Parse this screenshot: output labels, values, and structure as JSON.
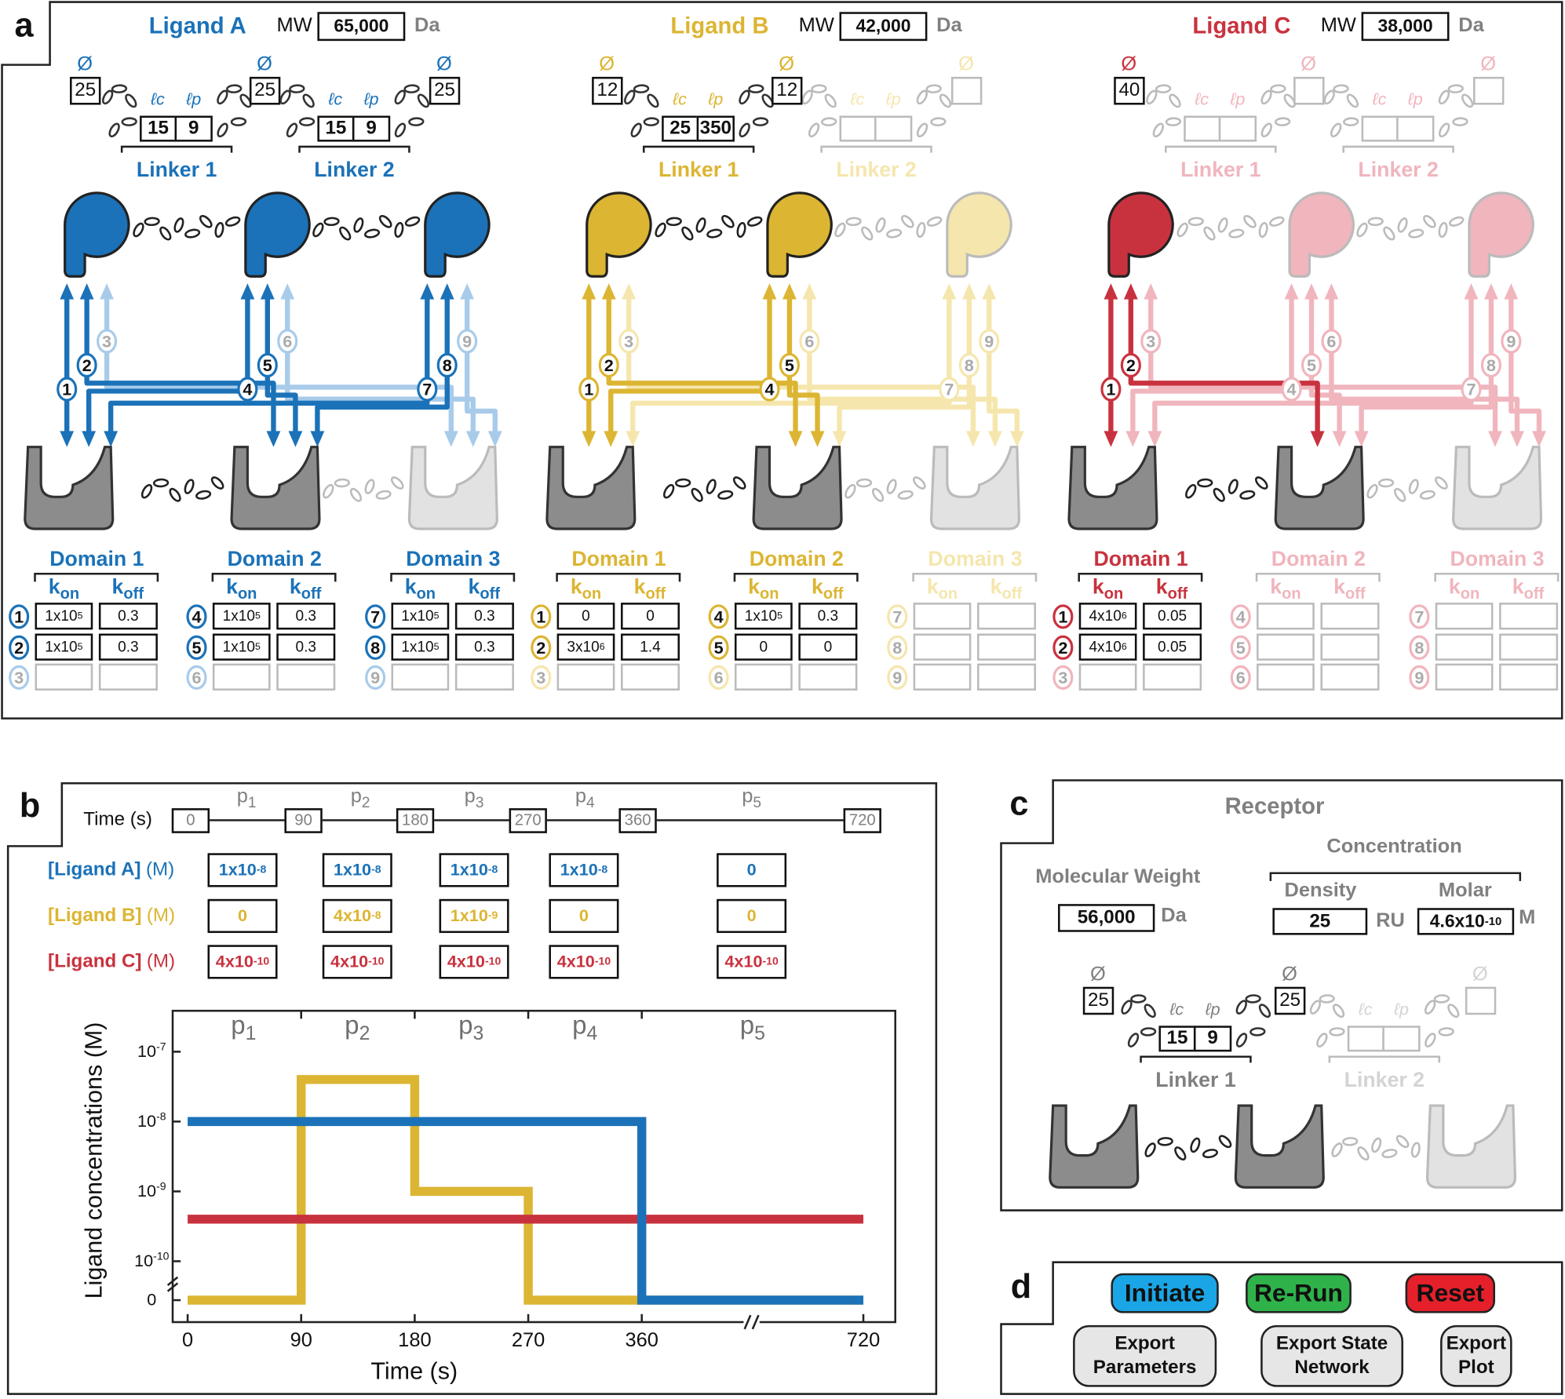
{
  "panel_labels": {
    "a": "a",
    "b": "b",
    "c": "c",
    "d": "d"
  },
  "symbols": {
    "diameter": "Ø",
    "lc": "ℓc",
    "lp": "ℓp",
    "k": "k",
    "on": "on",
    "off": "off"
  },
  "colors": {
    "ligand_a": "#1b72b8",
    "ligand_a_faded": "#a8cbea",
    "ligand_b": "#dcb532",
    "ligand_b_faded": "#f5e6ad",
    "ligand_c": "#c8323e",
    "ligand_c_faded": "#f0b5bd",
    "receptor": "#8c8c8c",
    "receptor_faded": "#e2e2e2",
    "text_grey": "#808080"
  },
  "ligands": [
    {
      "name": "Ligand A",
      "mw_label": "MW",
      "mw": "65,000",
      "mw_unit": "Da",
      "color": "#1b72b8",
      "faded": "#a8cbea",
      "modules_active": [
        true,
        true,
        true
      ],
      "diameters": [
        "25",
        "25",
        "25"
      ],
      "linkers": [
        {
          "label": "Linker 1",
          "lc": "15",
          "lp": "9",
          "active": true
        },
        {
          "label": "Linker 2",
          "lc": "15",
          "lp": "9",
          "active": true
        }
      ],
      "domains": [
        {
          "title": "Domain 1",
          "active": true,
          "rows": [
            {
              "num": "1",
              "kon": "1x10",
              "kon_exp": "5",
              "koff": "0.3"
            },
            {
              "num": "2",
              "kon": "1x10",
              "kon_exp": "5",
              "koff": "0.3"
            },
            {
              "num": "3",
              "kon": "",
              "kon_exp": "",
              "koff": ""
            }
          ]
        },
        {
          "title": "Domain 2",
          "active": true,
          "rows": [
            {
              "num": "4",
              "kon": "1x10",
              "kon_exp": "5",
              "koff": "0.3"
            },
            {
              "num": "5",
              "kon": "1x10",
              "kon_exp": "5",
              "koff": "0.3"
            },
            {
              "num": "6",
              "kon": "",
              "kon_exp": "",
              "koff": ""
            }
          ]
        },
        {
          "title": "Domain 3",
          "active": true,
          "rows": [
            {
              "num": "7",
              "kon": "1x10",
              "kon_exp": "5",
              "koff": "0.3"
            },
            {
              "num": "8",
              "kon": "1x10",
              "kon_exp": "5",
              "koff": "0.3"
            },
            {
              "num": "9",
              "kon": "",
              "kon_exp": "",
              "koff": ""
            }
          ]
        }
      ]
    },
    {
      "name": "Ligand B",
      "mw_label": "MW",
      "mw": "42,000",
      "mw_unit": "Da",
      "color": "#dcb532",
      "faded": "#f5e6ad",
      "modules_active": [
        true,
        true,
        false
      ],
      "diameters": [
        "12",
        "12",
        ""
      ],
      "linkers": [
        {
          "label": "Linker 1",
          "lc": "25",
          "lp": "350",
          "active": true
        },
        {
          "label": "Linker 2",
          "lc": "",
          "lp": "",
          "active": false
        }
      ],
      "domains": [
        {
          "title": "Domain 1",
          "active": true,
          "rows": [
            {
              "num": "1",
              "kon": "0",
              "kon_exp": "",
              "koff": "0"
            },
            {
              "num": "2",
              "kon": "3x10",
              "kon_exp": "6",
              "koff": "1.4"
            },
            {
              "num": "3",
              "kon": "",
              "kon_exp": "",
              "koff": ""
            }
          ]
        },
        {
          "title": "Domain 2",
          "active": true,
          "rows": [
            {
              "num": "4",
              "kon": "1x10",
              "kon_exp": "5",
              "koff": "0.3"
            },
            {
              "num": "5",
              "kon": "0",
              "kon_exp": "",
              "koff": "0"
            },
            {
              "num": "6",
              "kon": "",
              "kon_exp": "",
              "koff": ""
            }
          ]
        },
        {
          "title": "Domain 3",
          "active": false,
          "rows": [
            {
              "num": "7",
              "kon": "",
              "kon_exp": "",
              "koff": ""
            },
            {
              "num": "8",
              "kon": "",
              "kon_exp": "",
              "koff": ""
            },
            {
              "num": "9",
              "kon": "",
              "kon_exp": "",
              "koff": ""
            }
          ]
        }
      ]
    },
    {
      "name": "Ligand C",
      "mw_label": "MW",
      "mw": "38,000",
      "mw_unit": "Da",
      "color": "#c8323e",
      "faded": "#f0b5bd",
      "modules_active": [
        true,
        false,
        false
      ],
      "diameters": [
        "40",
        "",
        ""
      ],
      "linkers": [
        {
          "label": "Linker 1",
          "lc": "",
          "lp": "",
          "active": false
        },
        {
          "label": "Linker 2",
          "lc": "",
          "lp": "",
          "active": false
        }
      ],
      "domains": [
        {
          "title": "Domain 1",
          "active": true,
          "rows": [
            {
              "num": "1",
              "kon": "4x10",
              "kon_exp": "6",
              "koff": "0.05"
            },
            {
              "num": "2",
              "kon": "4x10",
              "kon_exp": "6",
              "koff": "0.05"
            },
            {
              "num": "3",
              "kon": "",
              "kon_exp": "",
              "koff": ""
            }
          ]
        },
        {
          "title": "Domain 2",
          "active": false,
          "rows": [
            {
              "num": "4",
              "kon": "",
              "kon_exp": "",
              "koff": ""
            },
            {
              "num": "5",
              "kon": "",
              "kon_exp": "",
              "koff": ""
            },
            {
              "num": "6",
              "kon": "",
              "kon_exp": "",
              "koff": ""
            }
          ]
        },
        {
          "title": "Domain 3",
          "active": false,
          "rows": [
            {
              "num": "7",
              "kon": "",
              "kon_exp": "",
              "koff": ""
            },
            {
              "num": "8",
              "kon": "",
              "kon_exp": "",
              "koff": ""
            },
            {
              "num": "9",
              "kon": "",
              "kon_exp": "",
              "koff": ""
            }
          ]
        }
      ]
    }
  ],
  "schedule": {
    "time_label": "Time (s)",
    "times": [
      "0",
      "90",
      "180",
      "270",
      "360",
      "720"
    ],
    "periods": [
      {
        "p": "p",
        "i": "1"
      },
      {
        "p": "p",
        "i": "2"
      },
      {
        "p": "p",
        "i": "3"
      },
      {
        "p": "p",
        "i": "4"
      },
      {
        "p": "p",
        "i": "5"
      }
    ],
    "rows": [
      {
        "label": "[Ligand A]",
        "unit": "(M)",
        "color": "#1b72b8",
        "values": [
          {
            "m": "1x10",
            "e": "-8"
          },
          {
            "m": "1x10",
            "e": "-8"
          },
          {
            "m": "1x10",
            "e": "-8"
          },
          {
            "m": "1x10",
            "e": "-8"
          },
          {
            "m": "0",
            "e": ""
          }
        ]
      },
      {
        "label": "[Ligand B]",
        "unit": "(M)",
        "color": "#dcb532",
        "values": [
          {
            "m": "0",
            "e": ""
          },
          {
            "m": "4x10",
            "e": "-8"
          },
          {
            "m": "1x10",
            "e": "-9"
          },
          {
            "m": "0",
            "e": ""
          },
          {
            "m": "0",
            "e": ""
          }
        ]
      },
      {
        "label": "[Ligand C]",
        "unit": "(M)",
        "color": "#c8323e",
        "values": [
          {
            "m": "4x10",
            "e": "-10"
          },
          {
            "m": "4x10",
            "e": "-10"
          },
          {
            "m": "4x10",
            "e": "-10"
          },
          {
            "m": "4x10",
            "e": "-10"
          },
          {
            "m": "4x10",
            "e": "-10"
          }
        ]
      }
    ]
  },
  "chart_data": {
    "type": "line",
    "xlabel": "Time (s)",
    "ylabel": "Ligand concentrations (M)",
    "x_ticks": [
      "0",
      "90",
      "180",
      "270",
      "360",
      "720"
    ],
    "y_ticks": [
      {
        "m": "10",
        "e": "-7",
        "v": 1e-07
      },
      {
        "m": "10",
        "e": "-8",
        "v": 1e-08
      },
      {
        "m": "10",
        "e": "-9",
        "v": 1e-09
      },
      {
        "m": "10",
        "e": "-10",
        "v": 1e-10
      },
      {
        "m": "0",
        "e": "",
        "v": 0
      }
    ],
    "y_scale": "log with zero break",
    "x_axis_break": "between 360 and 720",
    "xlim": [
      0,
      720
    ],
    "ylim": [
      0,
      1e-07
    ],
    "period_labels": [
      {
        "p": "p",
        "i": "1"
      },
      {
        "p": "p",
        "i": "2"
      },
      {
        "p": "p",
        "i": "3"
      },
      {
        "p": "p",
        "i": "4"
      },
      {
        "p": "p",
        "i": "5"
      }
    ],
    "period_bounds": [
      90,
      180,
      270,
      360
    ],
    "series": [
      {
        "color": "#dcb532",
        "steps": [
          [
            0,
            0
          ],
          [
            90,
            4e-08
          ],
          [
            180,
            1e-09
          ],
          [
            270,
            0
          ],
          [
            720,
            0
          ]
        ]
      },
      {
        "color": "#c8323e",
        "steps": [
          [
            0,
            4e-10
          ],
          [
            720,
            4e-10
          ]
        ]
      },
      {
        "color": "#1b72b8",
        "steps": [
          [
            0,
            1e-08
          ],
          [
            360,
            0
          ],
          [
            720,
            0
          ]
        ]
      }
    ]
  },
  "receptor": {
    "title": "Receptor",
    "mw_label": "Molecular Weight",
    "mw": "56,000",
    "mw_unit": "Da",
    "concentration_label": "Concentration",
    "density_label": "Density",
    "density": "25",
    "density_unit": "RU",
    "molar_label": "Molar",
    "molar": "4.6x10",
    "molar_exp": "-10",
    "molar_unit": "M",
    "diameters": [
      "25",
      "25",
      ""
    ],
    "modules_active": [
      true,
      true,
      false
    ],
    "linkers": [
      {
        "label": "Linker 1",
        "lc": "15",
        "lp": "9",
        "active": true
      },
      {
        "label": "Linker 2",
        "lc": "",
        "lp": "",
        "active": false
      }
    ]
  },
  "controls": {
    "initiate": "Initiate",
    "rerun": "Re-Run",
    "reset": "Reset",
    "export_parameters": "Export Parameters",
    "export_state_network": "Export State Network",
    "export_plot": "Export Plot",
    "initiate_color": "#1aa6e6",
    "rerun_color": "#2fb24a",
    "reset_color": "#e5202a"
  }
}
